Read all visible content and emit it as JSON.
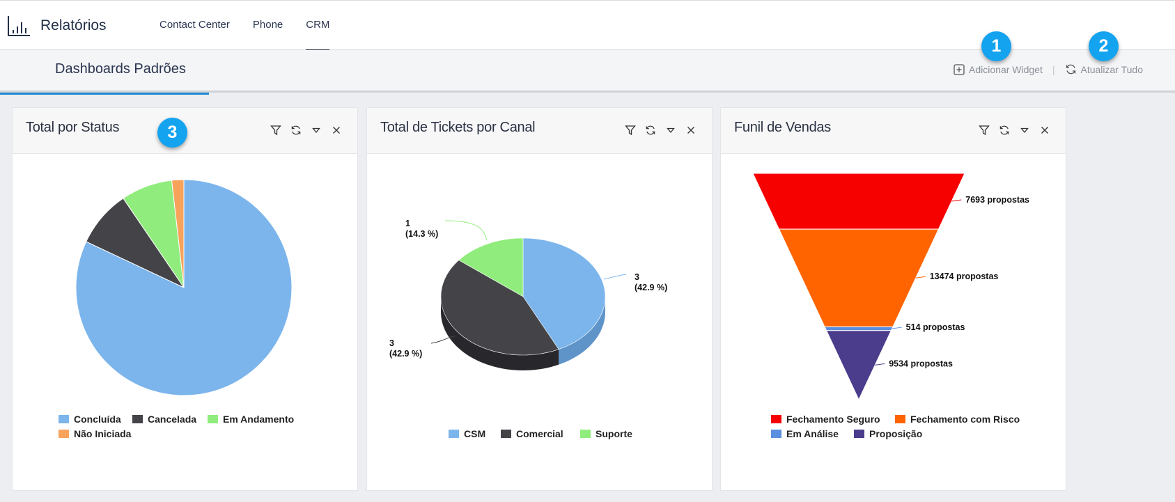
{
  "header": {
    "title": "Relatórios",
    "nav": [
      "Contact Center",
      "Phone",
      "CRM"
    ],
    "active_nav": "CRM"
  },
  "subbar": {
    "title": "Dashboards Padrões",
    "add_widget": "Adicionar Widget",
    "refresh_all": "Atualizar Tudo"
  },
  "badges": [
    "1",
    "2",
    "3"
  ],
  "colors": {
    "accent": "#1f87d1",
    "badge": "#13a3ef"
  },
  "widgets": [
    {
      "title": "Total por Status"
    },
    {
      "title": "Total de Tickets por Canal"
    },
    {
      "title": "Funil de Vendas"
    }
  ],
  "chart_data": [
    {
      "type": "pie",
      "title": "Total por Status",
      "series": [
        {
          "name": "Concluída",
          "value": 82,
          "color": "#7cb5ec"
        },
        {
          "name": "Cancelada",
          "value": 8.5,
          "color": "#434348"
        },
        {
          "name": "Em Andamento",
          "value": 7.7,
          "color": "#90ed7d"
        },
        {
          "name": "Não Iniciada",
          "value": 1.8,
          "color": "#f7a35c"
        }
      ]
    },
    {
      "type": "pie",
      "title": "Total de Tickets por Canal",
      "series": [
        {
          "name": "CSM",
          "value": 3,
          "label": "3",
          "pct": "(42.9 %)",
          "color": "#7cb5ec"
        },
        {
          "name": "Comercial",
          "value": 3,
          "label": "3",
          "pct": "(42.9 %)",
          "color": "#434348"
        },
        {
          "name": "Suporte",
          "value": 1,
          "label": "1",
          "pct": "(14.3 %)",
          "color": "#90ed7d"
        }
      ]
    },
    {
      "type": "funnel",
      "title": "Funil de Vendas",
      "series": [
        {
          "name": "Fechamento Seguro",
          "value": 7693,
          "label": "7693 propostas",
          "color": "#f70000"
        },
        {
          "name": "Fechamento com Risco",
          "value": 13474,
          "label": "13474 propostas",
          "color": "#ff6400"
        },
        {
          "name": "Em Análise",
          "value": 514,
          "label": "514 propostas",
          "color": "#5b8fe0"
        },
        {
          "name": "Proposição",
          "value": 9534,
          "label": "9534 propostas",
          "color": "#4b3c8c"
        }
      ]
    }
  ]
}
